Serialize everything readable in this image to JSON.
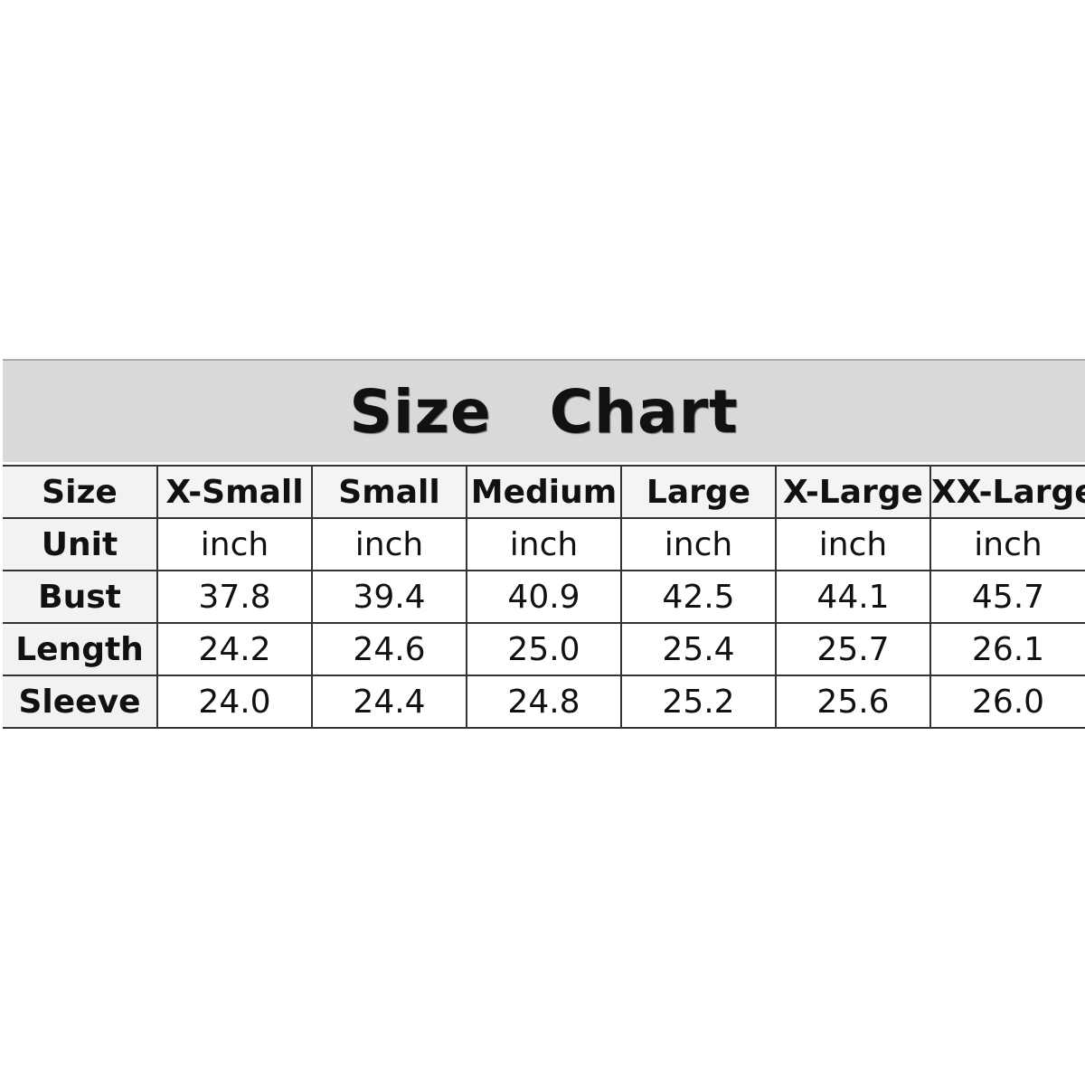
{
  "title": "Size   Chart",
  "table": {
    "header": [
      "Size",
      "X-Small",
      "Small",
      "Medium",
      "Large",
      "X-Large",
      "XX-Large"
    ],
    "rows": [
      [
        "Unit",
        "inch",
        "inch",
        "inch",
        "inch",
        "inch",
        "inch"
      ],
      [
        "Bust",
        "37.8",
        "39.4",
        "40.9",
        "42.5",
        "44.1",
        "45.7"
      ],
      [
        "Length",
        "24.2",
        "24.6",
        "25.0",
        "25.4",
        "25.7",
        "26.1"
      ],
      [
        "Sleeve",
        "24.0",
        "24.4",
        "24.8",
        "25.2",
        "25.6",
        "26.0"
      ]
    ]
  },
  "colors": {
    "title_band": "#d9d9d9",
    "label_column": "#f2f2f2",
    "grid": "#333333"
  }
}
